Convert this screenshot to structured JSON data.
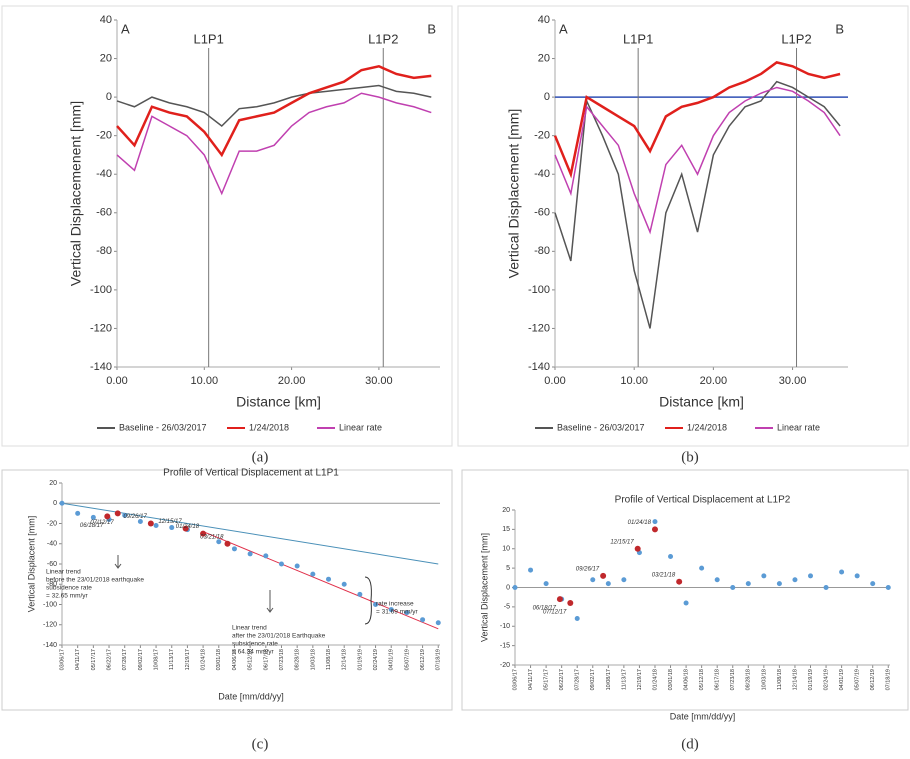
{
  "chart_data": [
    {
      "type": "line",
      "panel": "(a)",
      "x_label": "Distance [km]",
      "y_label": "Vertical Displacemenent [mm]",
      "xlim": [
        0,
        37
      ],
      "xticks": [
        {
          "value": 0,
          "label": "0.00"
        },
        {
          "value": 10,
          "label": "10.00"
        },
        {
          "value": 20,
          "label": "20.00"
        },
        {
          "value": 30,
          "label": "30.00"
        }
      ],
      "ylim": [
        -140,
        40
      ],
      "yticks": [
        -140,
        -120,
        -100,
        -80,
        -60,
        -40,
        -20,
        0,
        20,
        40
      ],
      "corner_labels": [
        "A",
        "B"
      ],
      "markers": [
        {
          "label": "L1P1",
          "x": 10.5
        },
        {
          "label": "L1P2",
          "x": 30.5
        }
      ],
      "x": [
        0,
        2,
        4,
        6,
        8,
        10,
        12,
        14,
        16,
        18,
        20,
        22,
        24,
        26,
        28,
        30,
        32,
        34,
        36
      ],
      "series": [
        {
          "name": "Baseline - 26/03/2017",
          "color": "#555555",
          "values": [
            -2,
            -5,
            0,
            -3,
            -5,
            -8,
            -15,
            -6,
            -5,
            -3,
            0,
            2,
            3,
            4,
            5,
            6,
            3,
            2,
            0
          ]
        },
        {
          "name": "1/24/2018",
          "color": "#e0201c",
          "values": [
            -15,
            -25,
            -5,
            -8,
            -10,
            -18,
            -30,
            -12,
            -10,
            -8,
            -3,
            2,
            5,
            8,
            14,
            16,
            12,
            10,
            11
          ]
        },
        {
          "name": "Linear rate",
          "color": "#c040b0",
          "values": [
            -30,
            -38,
            -10,
            -15,
            -20,
            -30,
            -50,
            -28,
            -28,
            -25,
            -15,
            -8,
            -5,
            -3,
            2,
            0,
            -3,
            -5,
            -8
          ]
        }
      ]
    },
    {
      "type": "line",
      "panel": "(b)",
      "x_label": "Distance [km]",
      "y_label": "Vertical Displacement [mm]",
      "xlim": [
        0,
        37
      ],
      "xticks": [
        {
          "value": 0,
          "label": "0.00"
        },
        {
          "value": 10,
          "label": "10.00"
        },
        {
          "value": 20,
          "label": "20.00"
        },
        {
          "value": 30,
          "label": "30.00"
        }
      ],
      "ylim": [
        -140,
        40
      ],
      "yticks": [
        -140,
        -120,
        -100,
        -80,
        -60,
        -40,
        -20,
        0,
        20,
        40
      ],
      "zero_line": "#2f4fb5",
      "corner_labels": [
        "A",
        "B"
      ],
      "markers": [
        {
          "label": "L1P1",
          "x": 10.5
        },
        {
          "label": "L1P2",
          "x": 30.5
        }
      ],
      "x": [
        0,
        2,
        4,
        6,
        8,
        10,
        12,
        14,
        16,
        18,
        20,
        22,
        24,
        26,
        28,
        30,
        32,
        34,
        36
      ],
      "series": [
        {
          "name": "Baseline - 26/03/2017",
          "color": "#555555",
          "values": [
            -60,
            -85,
            -2,
            -20,
            -40,
            -90,
            -120,
            -60,
            -40,
            -70,
            -30,
            -15,
            -5,
            -2,
            8,
            5,
            0,
            -5,
            -15
          ]
        },
        {
          "name": "1/24/2018",
          "color": "#e0201c",
          "values": [
            -20,
            -40,
            0,
            -5,
            -10,
            -15,
            -28,
            -10,
            -5,
            -3,
            0,
            5,
            8,
            12,
            18,
            16,
            12,
            10,
            12
          ]
        },
        {
          "name": "Linear rate",
          "color": "#c040b0",
          "values": [
            -30,
            -50,
            -5,
            -15,
            -25,
            -50,
            -70,
            -35,
            -25,
            -40,
            -20,
            -8,
            -2,
            2,
            5,
            3,
            -2,
            -8,
            -20
          ]
        }
      ]
    },
    {
      "type": "scatter",
      "panel": "(c)",
      "title": "Profile of Vertical Displacement at L1P1",
      "x_label": "Date [mm/dd/yy]",
      "y_label": "Vertical Displacent [mm]",
      "xlim": [
        "03/06/17",
        "07/22/19"
      ],
      "xticks": [
        "03/06/17",
        "04/11/17",
        "05/17/17",
        "06/22/17",
        "07/28/17",
        "09/02/17",
        "10/08/17",
        "11/13/17",
        "12/19/17",
        "01/24/18",
        "03/01/18",
        "04/06/18",
        "05/12/18",
        "06/17/18",
        "07/23/18",
        "08/28/18",
        "10/03/18",
        "11/08/18",
        "12/14/18",
        "01/19/19",
        "02/24/19",
        "04/01/19",
        "05/07/19",
        "06/12/19",
        "07/18/19"
      ],
      "ylim": [
        -140,
        20
      ],
      "yticks": [
        -140,
        -120,
        -100,
        -80,
        -60,
        -40,
        -20,
        0,
        20
      ],
      "zero_line": "#999999",
      "points": {
        "color": "#5b9bd5",
        "x": [
          "03/06/17",
          "04/11/17",
          "05/17/17",
          "06/22/17",
          "07/28/17",
          "09/02/17",
          "10/08/17",
          "11/13/17",
          "12/19/17",
          "01/24/18",
          "03/01/18",
          "04/06/18",
          "05/12/18",
          "06/17/18",
          "07/23/18",
          "08/28/18",
          "10/03/18",
          "11/08/18",
          "12/14/18",
          "01/19/19",
          "02/24/19",
          "04/01/19",
          "05/07/19",
          "06/12/19",
          "07/18/19"
        ],
        "values": [
          0,
          -10,
          -14,
          -16,
          -12,
          -18,
          -22,
          -24,
          -26,
          -30,
          -38,
          -45,
          -50,
          -52,
          -60,
          -62,
          -70,
          -75,
          -80,
          -90,
          -100,
          -105,
          -108,
          -115,
          -118
        ]
      },
      "highlights": {
        "color": "#c0282c",
        "x": [
          "06/18/17",
          "07/12/17",
          "09/26/17",
          "12/15/17",
          "01/24/18",
          "03/21/18"
        ],
        "values": [
          -13,
          -10,
          -20,
          -25,
          -30,
          -40
        ]
      },
      "trends": [
        {
          "color": "#4a90b8",
          "x": [
            "03/06/17",
            "07/18/19"
          ],
          "values": [
            0,
            -60
          ]
        },
        {
          "color": "#e0304a",
          "x": [
            "01/24/18",
            "07/18/19"
          ],
          "values": [
            -28,
            -124
          ]
        }
      ],
      "annotations": [
        [
          "Linear trend",
          "before the 23/01/2018 earthquake",
          "subsidence rate",
          "= 32.65 mm/yr"
        ],
        [
          "rate increase",
          "= 31.69 mm/yr"
        ],
        [
          "Linear trend",
          "after the 23/01/2018 Earthquake",
          "subsidence rate",
          "= 64.34 mm/yr"
        ]
      ]
    },
    {
      "type": "scatter",
      "panel": "(d)",
      "title": "Profile of Vertical Displacement at L1P2",
      "x_label": "Date [mm/dd/yy]",
      "y_label": "Vertical Displacement [mm]",
      "xlim": [
        "03/06/17",
        "07/22/19"
      ],
      "xticks": [
        "03/06/17",
        "04/11/17",
        "05/17/17",
        "06/22/17",
        "07/28/17",
        "09/02/17",
        "10/08/17",
        "11/13/17",
        "12/19/17",
        "01/24/18",
        "03/01/18",
        "04/06/18",
        "05/12/18",
        "06/17/18",
        "07/23/18",
        "08/28/18",
        "10/03/18",
        "11/08/18",
        "12/14/18",
        "01/19/19",
        "02/24/19",
        "04/01/19",
        "05/07/19",
        "06/12/19",
        "07/18/19"
      ],
      "ylim": [
        -20,
        20
      ],
      "yticks": [
        -20,
        -15,
        -10,
        -5,
        0,
        5,
        10,
        15,
        20
      ],
      "zero_line": "#999999",
      "points": {
        "color": "#5b9bd5",
        "x": [
          "03/06/17",
          "04/11/17",
          "05/17/17",
          "06/22/17",
          "07/28/17",
          "09/02/17",
          "10/08/17",
          "11/13/17",
          "12/19/17",
          "01/24/18",
          "03/01/18",
          "04/06/18",
          "05/12/18",
          "06/17/18",
          "07/23/18",
          "08/28/18",
          "10/03/18",
          "11/08/18",
          "12/14/18",
          "01/19/19",
          "02/24/19",
          "04/01/19",
          "05/07/19",
          "06/12/19",
          "07/18/19"
        ],
        "values": [
          0,
          4.5,
          1,
          -3,
          -8,
          2,
          1,
          2,
          9,
          17,
          8,
          -4,
          5,
          2,
          0,
          1,
          3,
          1,
          2,
          3,
          0,
          4,
          3,
          1,
          0
        ]
      },
      "highlights": {
        "color": "#c0282c",
        "x": [
          "06/18/17",
          "07/12/17",
          "09/26/17",
          "12/15/17",
          "01/24/18",
          "03/21/18"
        ],
        "values": [
          -3,
          -4,
          3,
          10,
          15,
          1.5
        ]
      }
    }
  ]
}
